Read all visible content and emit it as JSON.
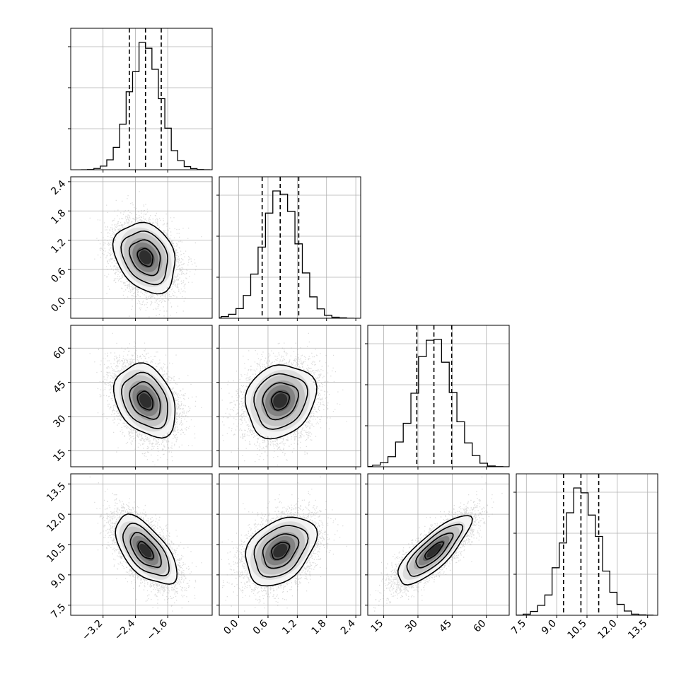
{
  "chart_data": {
    "type": "corner",
    "parameters": [
      {
        "mean": -2.15,
        "sd": 0.38,
        "range": [
          -4.0,
          -0.5
        ],
        "ticks": [
          -3.2,
          -2.4,
          -1.6
        ],
        "tick_labels": [
          "−3.2",
          "−2.4",
          "−1.6"
        ],
        "quantiles": [
          -2.55,
          -2.15,
          -1.76
        ]
      },
      {
        "mean": 0.85,
        "sd": 0.36,
        "range": [
          -0.4,
          2.5
        ],
        "ticks": [
          0.0,
          0.6,
          1.2,
          1.8,
          2.4
        ],
        "tick_labels": [
          "0.0",
          "0.6",
          "1.2",
          "1.8",
          "2.4"
        ],
        "quantiles": [
          0.48,
          0.85,
          1.23
        ]
      },
      {
        "mean": 37.0,
        "sd": 8.0,
        "range": [
          8.0,
          70.0
        ],
        "ticks": [
          15,
          30,
          45,
          60
        ],
        "tick_labels": [
          "15",
          "30",
          "45",
          "60"
        ],
        "quantiles": [
          29.5,
          37.0,
          44.8
        ]
      },
      {
        "mean": 10.2,
        "sd": 0.85,
        "range": [
          7.0,
          14.0
        ],
        "ticks": [
          7.5,
          9.0,
          10.5,
          12.0,
          13.5
        ],
        "tick_labels": [
          "7.5",
          "9.0",
          "10.5",
          "12.0",
          "13.5"
        ],
        "quantiles": [
          9.34,
          10.2,
          11.08
        ]
      }
    ],
    "correlations": [
      [
        1.0,
        -0.25,
        -0.3,
        -0.6
      ],
      [
        -0.25,
        1.0,
        0.15,
        0.35
      ],
      [
        -0.3,
        0.15,
        1.0,
        0.8
      ],
      [
        -0.6,
        0.35,
        0.8,
        1.0
      ]
    ],
    "histogram": {
      "bins": 20,
      "histtype": "step"
    },
    "contour_levels_sigma": [
      0.5,
      1.0,
      1.5,
      2.0
    ],
    "grid": true,
    "colors": {
      "line": "#000000",
      "points": "#9a9a9a",
      "grid": "#b0b0b0"
    }
  }
}
